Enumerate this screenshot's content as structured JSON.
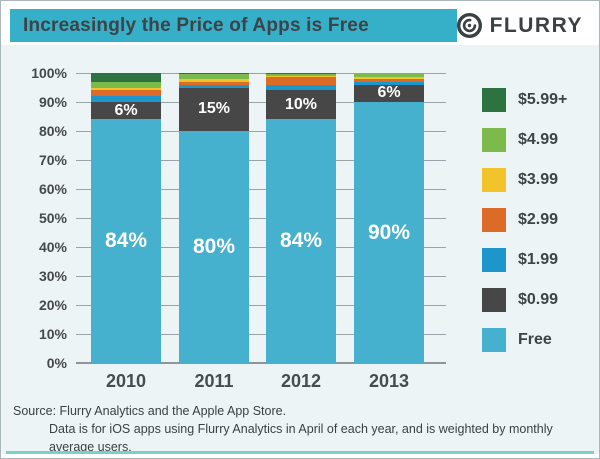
{
  "header": {
    "title": "Increasingly the Price of Apps is Free",
    "brand": "FLURRY"
  },
  "colors": {
    "header_accent": "#36afc9",
    "bottom_rule": "#79d2c8",
    "background": "#ecf4f6",
    "gridline": "#99a4aa",
    "text_dark": "#3d4347"
  },
  "chart_data": {
    "type": "bar",
    "stacked": true,
    "unit": "%",
    "categories": [
      "2010",
      "2011",
      "2012",
      "2013"
    ],
    "series": [
      {
        "name": "Free",
        "color": "#45b1ce",
        "values": [
          84,
          80,
          84,
          90
        ],
        "labels": [
          "84%",
          "80%",
          "84%",
          "90%"
        ]
      },
      {
        "name": "$0.99",
        "color": "#474747",
        "values": [
          6,
          15,
          10,
          6
        ],
        "labels": [
          "6%",
          "15%",
          "10%",
          "6%"
        ]
      },
      {
        "name": "$1.99",
        "color": "#1d96cc",
        "values": [
          2,
          1,
          2,
          1
        ]
      },
      {
        "name": "$2.99",
        "color": "#dc6b28",
        "values": [
          2,
          1,
          2.5,
          1
        ]
      },
      {
        "name": "$3.99",
        "color": "#f2c32b",
        "values": [
          1,
          1,
          0.5,
          0.5
        ]
      },
      {
        "name": "$4.99",
        "color": "#7cba4b",
        "values": [
          2,
          1.5,
          0.5,
          1.5
        ]
      },
      {
        "name": "$5.99+",
        "color": "#2d7340",
        "values": [
          3,
          0.5,
          0.5,
          0
        ]
      }
    ],
    "y_ticks": [
      "0%",
      "10%",
      "20%",
      "30%",
      "40%",
      "50%",
      "60%",
      "70%",
      "80%",
      "90%",
      "100%"
    ],
    "ylim": [
      0,
      100
    ],
    "grid": true,
    "legend_position": "right",
    "legend_order_top_to_bottom": [
      "$5.99+",
      "$4.99",
      "$3.99",
      "$2.99",
      "$1.99",
      "$0.99",
      "Free"
    ]
  },
  "footer": {
    "line1": "Source: Flurry Analytics and the Apple App Store.",
    "line2": "Data is for iOS apps using Flurry Analytics in April of each year, and is weighted by monthly average users."
  }
}
